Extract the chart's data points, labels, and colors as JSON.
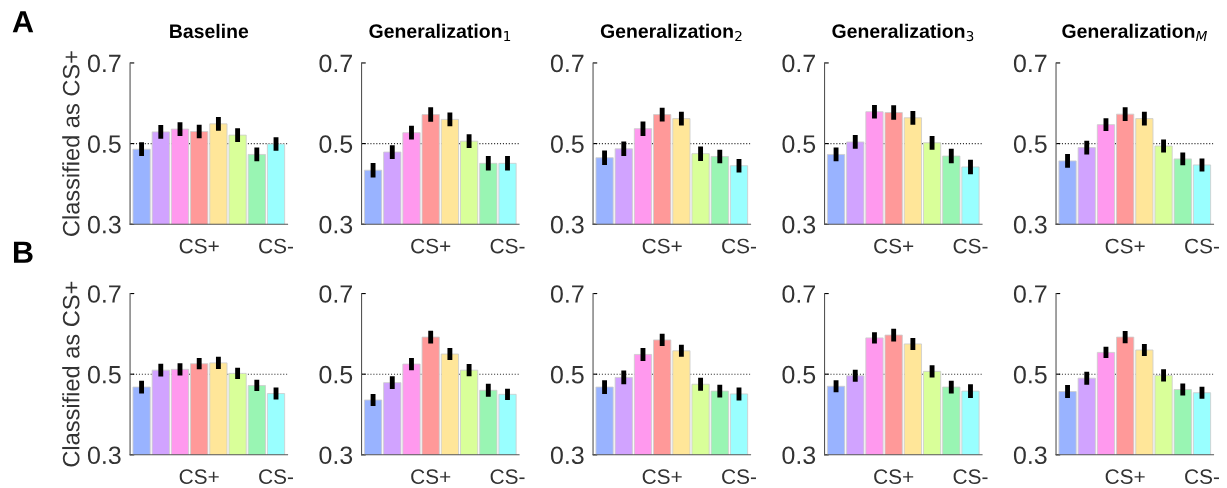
{
  "chart_data": [
    {
      "type": "bar",
      "title": "Baseline",
      "ylabel": "Classified as CS+",
      "annotations": [
        "A"
      ],
      "categories": [
        null,
        null,
        null,
        "CS+",
        null,
        null,
        null,
        "CS-"
      ],
      "values": [
        0.486,
        0.529,
        0.536,
        0.53,
        0.549,
        0.521,
        0.473,
        0.499
      ],
      "errors": [
        0.017,
        0.017,
        0.017,
        0.017,
        0.017,
        0.017,
        0.017,
        0.017
      ],
      "colors": [
        "#99b3ff",
        "#d1a3ff",
        "#ff99ee",
        "#ff9999",
        "#ffe699",
        "#d9ff99",
        "#99f5b3",
        "#99ffff"
      ],
      "ylim": [
        0.3,
        0.7
      ],
      "yticks": [
        0.3,
        0.5,
        0.7
      ],
      "ref_lines": [
        {
          "axis": "y",
          "value": 0.5,
          "line_style": "dotted"
        }
      ]
    },
    {
      "type": "bar",
      "title": "Generalization$_{1}$",
      "categories": [
        null,
        null,
        null,
        "CS+",
        null,
        null,
        null,
        "CS-"
      ],
      "values": [
        0.434,
        0.479,
        0.527,
        0.572,
        0.56,
        0.506,
        0.451,
        0.451
      ],
      "errors": [
        0.018,
        0.017,
        0.017,
        0.018,
        0.017,
        0.017,
        0.018,
        0.018
      ],
      "colors": [
        "#99b3ff",
        "#d1a3ff",
        "#ff99ee",
        "#ff9999",
        "#ffe699",
        "#d9ff99",
        "#99f5b3",
        "#99ffff"
      ],
      "ylim": [
        0.3,
        0.7
      ],
      "yticks": [
        0.3,
        0.5,
        0.7
      ],
      "ref_lines": [
        {
          "axis": "y",
          "value": 0.5,
          "line_style": "dotted"
        }
      ]
    },
    {
      "type": "bar",
      "title": "Generalization$_{2}$",
      "categories": [
        null,
        null,
        null,
        "CS+",
        null,
        null,
        null,
        "CS-"
      ],
      "values": [
        0.465,
        0.487,
        0.537,
        0.572,
        0.562,
        0.475,
        0.468,
        0.445
      ],
      "errors": [
        0.018,
        0.018,
        0.018,
        0.017,
        0.017,
        0.018,
        0.017,
        0.017
      ],
      "colors": [
        "#99b3ff",
        "#d1a3ff",
        "#ff99ee",
        "#ff9999",
        "#ffe699",
        "#d9ff99",
        "#99f5b3",
        "#99ffff"
      ],
      "ylim": [
        0.3,
        0.7
      ],
      "yticks": [
        0.3,
        0.5,
        0.7
      ],
      "ref_lines": [
        {
          "axis": "y",
          "value": 0.5,
          "line_style": "dotted"
        }
      ]
    },
    {
      "type": "bar",
      "title": "Generalization$_{3}$",
      "categories": [
        null,
        null,
        null,
        "CS+",
        null,
        null,
        null,
        "CS-"
      ],
      "values": [
        0.473,
        0.504,
        0.579,
        0.577,
        0.564,
        0.502,
        0.469,
        0.442
      ],
      "errors": [
        0.017,
        0.017,
        0.017,
        0.018,
        0.017,
        0.017,
        0.018,
        0.018
      ],
      "colors": [
        "#99b3ff",
        "#d1a3ff",
        "#ff99ee",
        "#ff9999",
        "#ffe699",
        "#d9ff99",
        "#99f5b3",
        "#99ffff"
      ],
      "ylim": [
        0.3,
        0.7
      ],
      "yticks": [
        0.3,
        0.5,
        0.7
      ],
      "ref_lines": [
        {
          "axis": "y",
          "value": 0.5,
          "line_style": "dotted"
        }
      ]
    },
    {
      "type": "bar",
      "title": "Generalization$_{M}$",
      "categories": [
        null,
        null,
        null,
        "CS+",
        null,
        null,
        null,
        "CS-"
      ],
      "values": [
        0.457,
        0.49,
        0.547,
        0.573,
        0.562,
        0.494,
        0.462,
        0.447
      ],
      "errors": [
        0.017,
        0.017,
        0.016,
        0.017,
        0.017,
        0.016,
        0.016,
        0.016
      ],
      "colors": [
        "#99b3ff",
        "#d1a3ff",
        "#ff99ee",
        "#ff9999",
        "#ffe699",
        "#d9ff99",
        "#99f5b3",
        "#99ffff"
      ],
      "ylim": [
        0.3,
        0.7
      ],
      "yticks": [
        0.3,
        0.5,
        0.7
      ],
      "ref_lines": [
        {
          "axis": "y",
          "value": 0.5,
          "line_style": "dotted"
        }
      ]
    },
    {
      "type": "bar",
      "ylabel": "Classified as CS+",
      "annotations": [
        "B"
      ],
      "categories": [
        null,
        null,
        null,
        "CS+",
        null,
        null,
        null,
        "CS-"
      ],
      "values": [
        0.468,
        0.51,
        0.512,
        0.526,
        0.528,
        0.502,
        0.472,
        0.452
      ],
      "errors": [
        0.016,
        0.016,
        0.015,
        0.014,
        0.015,
        0.014,
        0.014,
        0.015
      ],
      "colors": [
        "#99b3ff",
        "#d1a3ff",
        "#ff99ee",
        "#ff9999",
        "#ffe699",
        "#d9ff99",
        "#99f5b3",
        "#99ffff"
      ],
      "ylim": [
        0.3,
        0.7
      ],
      "yticks": [
        0.3,
        0.5,
        0.7
      ],
      "ref_lines": [
        {
          "axis": "y",
          "value": 0.5,
          "line_style": "dotted"
        }
      ]
    },
    {
      "type": "bar",
      "categories": [
        null,
        null,
        null,
        "CS+",
        null,
        null,
        null,
        "CS-"
      ],
      "values": [
        0.436,
        0.479,
        0.525,
        0.592,
        0.55,
        0.51,
        0.46,
        0.45
      ],
      "errors": [
        0.015,
        0.016,
        0.015,
        0.016,
        0.015,
        0.015,
        0.016,
        0.014
      ],
      "colors": [
        "#99b3ff",
        "#d1a3ff",
        "#ff99ee",
        "#ff9999",
        "#ffe699",
        "#d9ff99",
        "#99f5b3",
        "#99ffff"
      ],
      "ylim": [
        0.3,
        0.7
      ],
      "yticks": [
        0.3,
        0.5,
        0.7
      ],
      "ref_lines": [
        {
          "axis": "y",
          "value": 0.5,
          "line_style": "dotted"
        }
      ]
    },
    {
      "type": "bar",
      "categories": [
        null,
        null,
        null,
        "CS+",
        null,
        null,
        null,
        "CS-"
      ],
      "values": [
        0.468,
        0.492,
        0.549,
        0.585,
        0.558,
        0.475,
        0.458,
        0.451
      ],
      "errors": [
        0.017,
        0.017,
        0.016,
        0.015,
        0.015,
        0.016,
        0.016,
        0.016
      ],
      "colors": [
        "#99b3ff",
        "#d1a3ff",
        "#ff99ee",
        "#ff9999",
        "#ffe699",
        "#d9ff99",
        "#99f5b3",
        "#99ffff"
      ],
      "ylim": [
        0.3,
        0.7
      ],
      "yticks": [
        0.3,
        0.5,
        0.7
      ],
      "ref_lines": [
        {
          "axis": "y",
          "value": 0.5,
          "line_style": "dotted"
        }
      ]
    },
    {
      "type": "bar",
      "categories": [
        null,
        null,
        null,
        "CS+",
        null,
        null,
        null,
        "CS-"
      ],
      "values": [
        0.47,
        0.496,
        0.59,
        0.597,
        0.575,
        0.507,
        0.468,
        0.458
      ],
      "errors": [
        0.015,
        0.015,
        0.014,
        0.016,
        0.015,
        0.015,
        0.016,
        0.017
      ],
      "colors": [
        "#99b3ff",
        "#d1a3ff",
        "#ff99ee",
        "#ff9999",
        "#ffe699",
        "#d9ff99",
        "#99f5b3",
        "#99ffff"
      ],
      "ylim": [
        0.3,
        0.7
      ],
      "yticks": [
        0.3,
        0.5,
        0.7
      ],
      "ref_lines": [
        {
          "axis": "y",
          "value": 0.5,
          "line_style": "dotted"
        }
      ]
    },
    {
      "type": "bar",
      "categories": [
        null,
        null,
        null,
        "CS+",
        null,
        null,
        null,
        "CS-"
      ],
      "values": [
        0.457,
        0.49,
        0.554,
        0.592,
        0.56,
        0.497,
        0.462,
        0.454
      ],
      "errors": [
        0.016,
        0.016,
        0.014,
        0.015,
        0.015,
        0.015,
        0.015,
        0.015
      ],
      "colors": [
        "#99b3ff",
        "#d1a3ff",
        "#ff99ee",
        "#ff9999",
        "#ffe699",
        "#d9ff99",
        "#99f5b3",
        "#99ffff"
      ],
      "ylim": [
        0.3,
        0.7
      ],
      "yticks": [
        0.3,
        0.5,
        0.7
      ],
      "ref_lines": [
        {
          "axis": "y",
          "value": 0.5,
          "line_style": "dotted"
        }
      ]
    }
  ]
}
